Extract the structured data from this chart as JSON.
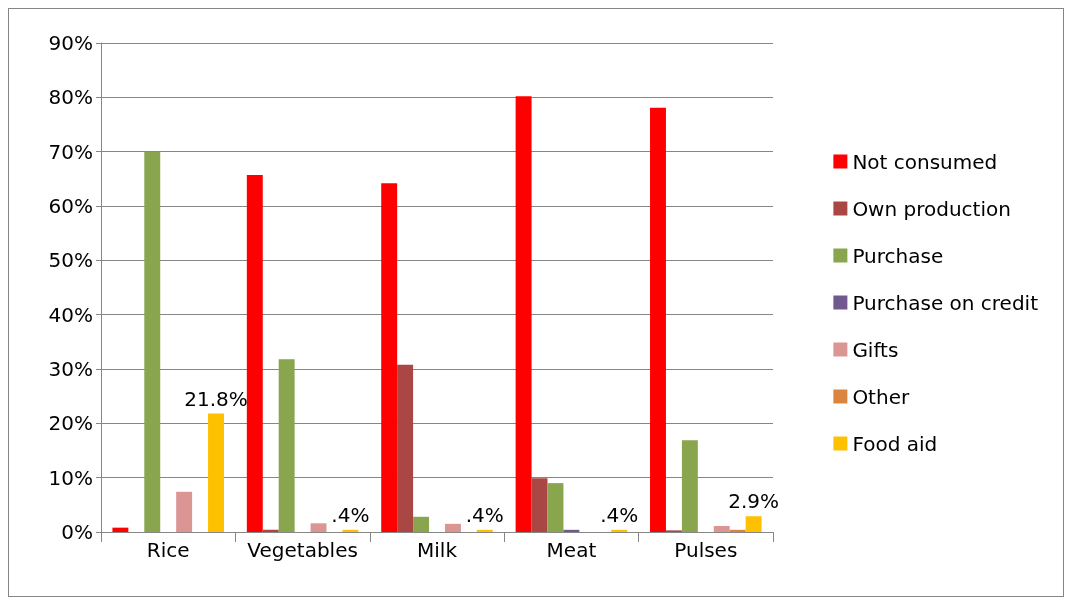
{
  "chart_data": {
    "type": "bar",
    "categories": [
      "Rice",
      "Vegetables",
      "Milk",
      "Meat",
      "Pulses"
    ],
    "series": [
      {
        "name": "Not consumed",
        "color": "#ff0000",
        "values": [
          0.8,
          65.7,
          64.2,
          80.2,
          78.1
        ]
      },
      {
        "name": "Own production",
        "color": "#aa4643",
        "values": [
          0,
          0.4,
          30.8,
          9.9,
          0.3
        ]
      },
      {
        "name": "Purchase",
        "color": "#89a54e",
        "values": [
          70,
          31.8,
          2.8,
          9.0,
          16.9
        ]
      },
      {
        "name": "Purchase on credit",
        "color": "#71588f",
        "values": [
          0,
          0,
          0,
          0.4,
          0
        ]
      },
      {
        "name": "Gifts",
        "color": "#db9694",
        "values": [
          7.4,
          1.6,
          1.5,
          0,
          1.1
        ]
      },
      {
        "name": "Other",
        "color": "#db843d",
        "values": [
          0,
          0,
          0,
          0,
          0.4
        ]
      },
      {
        "name": "Food aid",
        "color": "#ffc000",
        "values": [
          21.8,
          0.4,
          0.4,
          0.4,
          2.9
        ],
        "value_labels": [
          "21.8%",
          ".4%",
          ".4%",
          ".4%",
          "2.9%"
        ]
      }
    ],
    "ylim": [
      0,
      90
    ],
    "yticks": [
      {
        "value": 0,
        "label": "0%"
      },
      {
        "value": 10,
        "label": "10%"
      },
      {
        "value": 20,
        "label": "20%"
      },
      {
        "value": 30,
        "label": "30%"
      },
      {
        "value": 40,
        "label": "40%"
      },
      {
        "value": 50,
        "label": "50%"
      },
      {
        "value": 60,
        "label": "60%"
      },
      {
        "value": 70,
        "label": "70%"
      },
      {
        "value": 80,
        "label": "80%"
      },
      {
        "value": 90,
        "label": "90%"
      }
    ],
    "grid": "y",
    "legend": "right"
  }
}
